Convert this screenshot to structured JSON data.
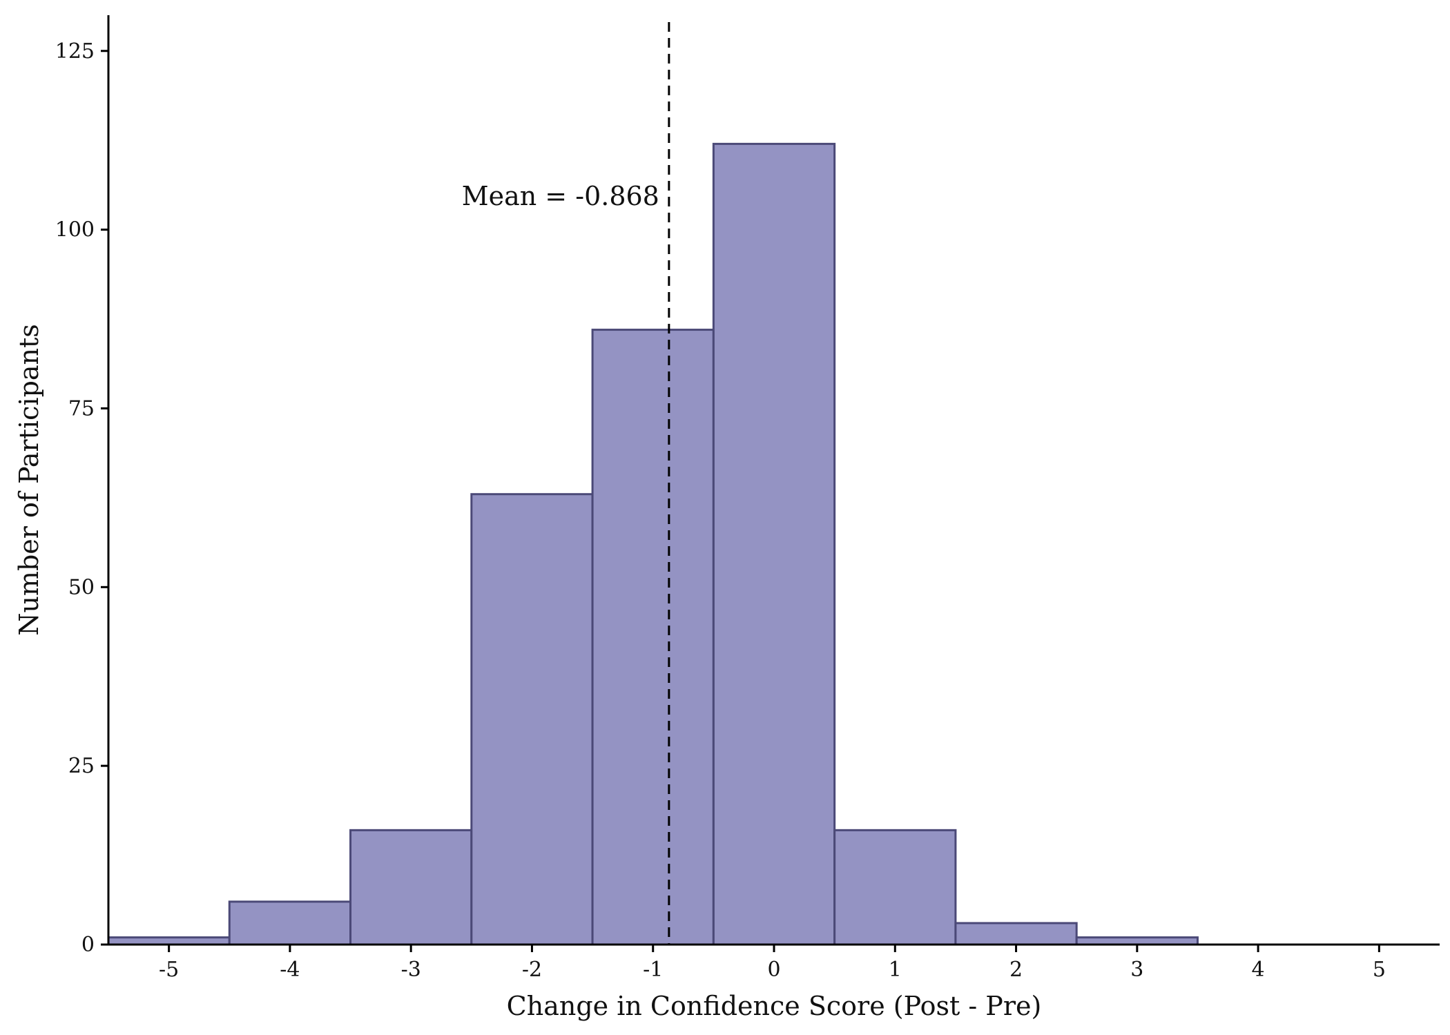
{
  "chart_data": {
    "type": "bar",
    "subtype": "histogram",
    "xlabel": "Change in Confidence Score (Post - Pre)",
    "ylabel": "Number of Participants",
    "xlim": [
      -5.5,
      5.5
    ],
    "ylim": [
      0,
      130
    ],
    "x_ticks": [
      -5,
      -4,
      -3,
      -2,
      -1,
      0,
      1,
      2,
      3,
      4,
      5
    ],
    "x_tick_labels": [
      "-5",
      "-4",
      "-3",
      "-2",
      "-1",
      "0",
      "1",
      "2",
      "3",
      "4",
      "5"
    ],
    "y_ticks": [
      0,
      25,
      50,
      75,
      100,
      125
    ],
    "y_tick_labels": [
      "0",
      "25",
      "50",
      "75",
      "100",
      "125"
    ],
    "categories": [
      -5,
      -4,
      -3,
      -2,
      -1,
      0,
      1,
      2,
      3
    ],
    "values": [
      1,
      6,
      16,
      63,
      86,
      112,
      16,
      3,
      1
    ],
    "bin_width": 1,
    "mean": -0.868,
    "annotation": "Mean = -0.868",
    "grid": false,
    "colors": {
      "bar_fill": "#9493c3",
      "bar_stroke": "#4b4977",
      "mean_line": "#000000",
      "axis": "#000000"
    }
  }
}
